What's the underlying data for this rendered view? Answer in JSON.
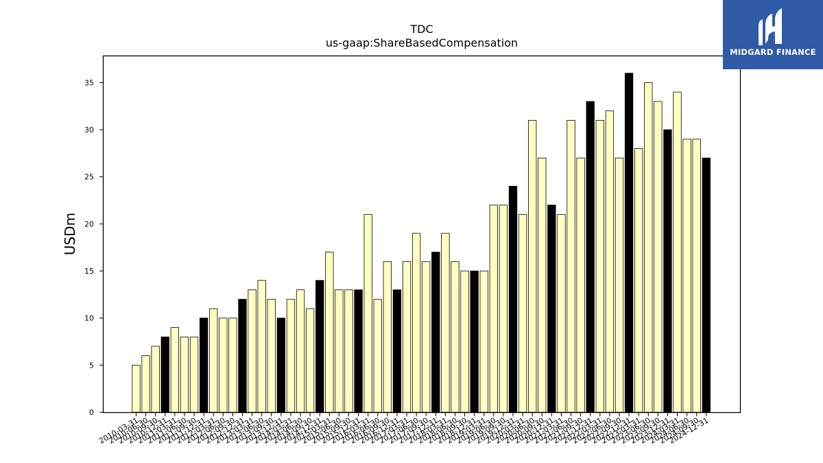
{
  "logo": {
    "text": "MIDGARD FINANCE"
  },
  "chart_data": {
    "type": "bar",
    "title": "TDC",
    "subtitle": "us-gaap:ShareBasedCompensation",
    "ylabel": "USDm",
    "xlabel": "",
    "ylim": [
      0,
      37.8
    ],
    "yticks": [
      0,
      5,
      10,
      15,
      20,
      25,
      30,
      35
    ],
    "colors": {
      "quarter": "#ffffc0",
      "annual": "#000000",
      "edge": "#000000"
    },
    "categories": [
      "2010-03-31",
      "2010-06-30",
      "2010-09-30",
      "2010-12-31",
      "2011-03-31",
      "2011-06-30",
      "2011-09-30",
      "2011-12-31",
      "2012-03-31",
      "2012-06-30",
      "2012-09-30",
      "2012-12-31",
      "2013-03-31",
      "2013-06-30",
      "2013-09-30",
      "2013-12-31",
      "2014-03-31",
      "2014-06-30",
      "2014-09-30",
      "2014-12-31",
      "2015-03-31",
      "2015-06-30",
      "2015-09-30",
      "2015-12-31",
      "2016-03-31",
      "2016-06-30",
      "2016-09-30",
      "2016-12-31",
      "2017-03-31",
      "2017-06-30",
      "2017-09-30",
      "2017-12-31",
      "2018-03-31",
      "2018-06-30",
      "2018-09-30",
      "2018-12-31",
      "2019-03-31",
      "2019-06-30",
      "2019-09-30",
      "2019-12-31",
      "2020-03-31",
      "2020-06-30",
      "2020-09-30",
      "2020-12-31",
      "2021-03-31",
      "2021-06-30",
      "2021-09-30",
      "2021-12-31",
      "2022-03-31",
      "2022-06-30",
      "2022-09-30",
      "2022-12-31",
      "2023-03-31",
      "2023-06-30",
      "2023-09-30",
      "2023-12-31",
      "2024-03-31",
      "2024-06-30",
      "2024-09-30",
      "2024-12-31"
    ],
    "values": [
      5,
      6,
      7,
      8,
      9,
      8,
      8,
      10,
      11,
      10,
      10,
      12,
      13,
      14,
      12,
      10,
      12,
      13,
      11,
      14,
      17,
      13,
      13,
      13,
      21,
      12,
      16,
      13,
      16,
      19,
      16,
      17,
      19,
      16,
      15,
      15,
      15,
      22,
      22,
      24,
      21,
      31,
      27,
      22,
      21,
      31,
      27,
      33,
      31,
      32,
      27,
      36,
      28,
      35,
      33,
      30,
      34,
      29,
      29,
      27
    ],
    "annual_flags": [
      0,
      0,
      0,
      1,
      0,
      0,
      0,
      1,
      0,
      0,
      0,
      1,
      0,
      0,
      0,
      1,
      0,
      0,
      0,
      1,
      0,
      0,
      0,
      1,
      0,
      0,
      0,
      1,
      0,
      0,
      0,
      1,
      0,
      0,
      0,
      1,
      0,
      0,
      0,
      1,
      0,
      0,
      0,
      1,
      0,
      0,
      0,
      1,
      0,
      0,
      0,
      1,
      0,
      0,
      0,
      1,
      0,
      0,
      0,
      1
    ]
  }
}
